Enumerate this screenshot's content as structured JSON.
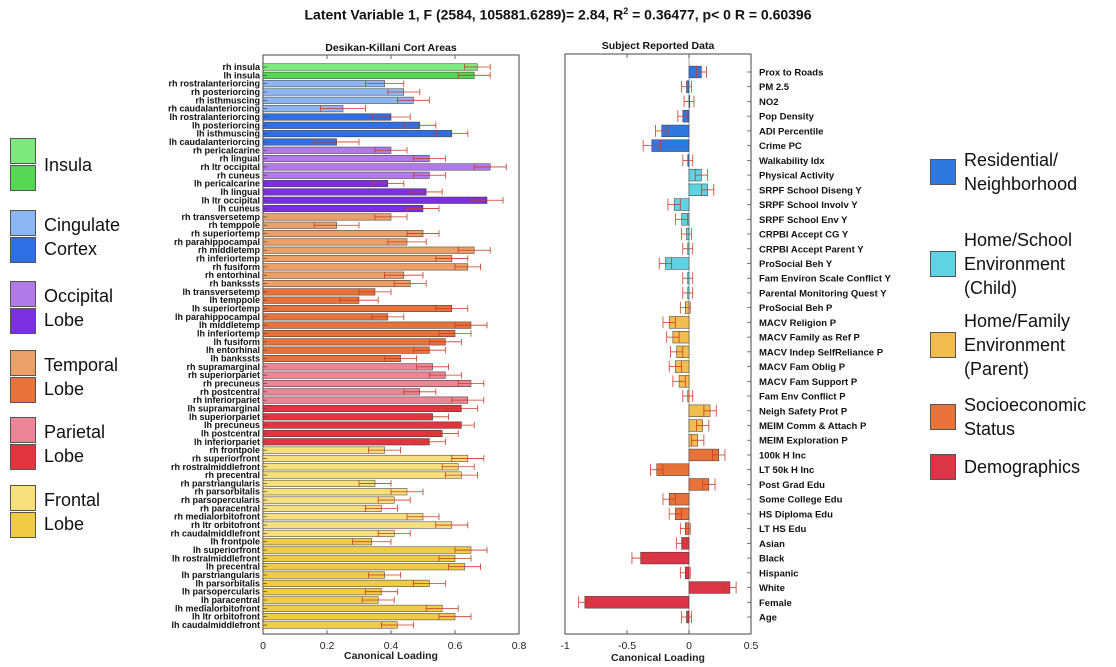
{
  "title": {
    "pre": "Latent Variable 1, F (2584, 105881.6289)= 2.84, R",
    "sup": "2",
    "post": " = 0.36477, p< 0 R = 0.60396"
  },
  "chart_data": [
    {
      "type": "bar",
      "orientation": "horizontal",
      "title": "Desikan-Killani Cort Areas",
      "xlabel": "Canonical Loading",
      "xlim": [
        0,
        0.8
      ],
      "xticks": [
        "0",
        "0.2",
        "0.4",
        "0.6",
        "0.8"
      ],
      "grid": false,
      "bars": [
        {
          "label": "rh insula",
          "value": 0.67,
          "err": 0.04,
          "color": "#7de87d"
        },
        {
          "label": "lh insula",
          "value": 0.66,
          "err": 0.05,
          "color": "#55d655"
        },
        {
          "label": "rh rostralanteriorcing",
          "value": 0.38,
          "err": 0.06,
          "color": "#8bb6f2"
        },
        {
          "label": "rh posteriorcing",
          "value": 0.44,
          "err": 0.05,
          "color": "#8bb6f2"
        },
        {
          "label": "rh isthmuscing",
          "value": 0.47,
          "err": 0.05,
          "color": "#8bb6f2"
        },
        {
          "label": "rh caudalanteriorcing",
          "value": 0.25,
          "err": 0.07,
          "color": "#8bb6f2"
        },
        {
          "label": "lh rostralanteriorcing",
          "value": 0.4,
          "err": 0.06,
          "color": "#2f6fe6"
        },
        {
          "label": "lh posteriorcing",
          "value": 0.49,
          "err": 0.05,
          "color": "#2f6fe6"
        },
        {
          "label": "lh isthmuscing",
          "value": 0.59,
          "err": 0.05,
          "color": "#2f6fe6"
        },
        {
          "label": "lh caudalanteriorcing",
          "value": 0.23,
          "err": 0.07,
          "color": "#2f6fe6"
        },
        {
          "label": "rh pericalcarine",
          "value": 0.4,
          "err": 0.05,
          "color": "#b07be8"
        },
        {
          "label": "rh lingual",
          "value": 0.52,
          "err": 0.05,
          "color": "#b07be8"
        },
        {
          "label": "rh ltr occipital",
          "value": 0.71,
          "err": 0.05,
          "color": "#b07be8"
        },
        {
          "label": "rh cuneus",
          "value": 0.52,
          "err": 0.05,
          "color": "#b07be8"
        },
        {
          "label": "lh pericalcarine",
          "value": 0.39,
          "err": 0.05,
          "color": "#7a30e0"
        },
        {
          "label": "lh lingual",
          "value": 0.51,
          "err": 0.05,
          "color": "#7a30e0"
        },
        {
          "label": "lh ltr occipital",
          "value": 0.7,
          "err": 0.05,
          "color": "#7a30e0"
        },
        {
          "label": "lh cuneus",
          "value": 0.5,
          "err": 0.05,
          "color": "#7a30e0"
        },
        {
          "label": "rh transversetemp",
          "value": 0.4,
          "err": 0.05,
          "color": "#eba069"
        },
        {
          "label": "rh temppole",
          "value": 0.23,
          "err": 0.07,
          "color": "#eba069"
        },
        {
          "label": "rh superiortemp",
          "value": 0.5,
          "err": 0.05,
          "color": "#eba069"
        },
        {
          "label": "rh parahippocampal",
          "value": 0.45,
          "err": 0.06,
          "color": "#eba069"
        },
        {
          "label": "rh middletemp",
          "value": 0.66,
          "err": 0.05,
          "color": "#eba069"
        },
        {
          "label": "rh inferiortemp",
          "value": 0.59,
          "err": 0.05,
          "color": "#eba069"
        },
        {
          "label": "rh fusiform",
          "value": 0.64,
          "err": 0.04,
          "color": "#eba069"
        },
        {
          "label": "rh entorhinal",
          "value": 0.44,
          "err": 0.06,
          "color": "#eba069"
        },
        {
          "label": "rh bankssts",
          "value": 0.46,
          "err": 0.05,
          "color": "#eba069"
        },
        {
          "label": "lh transversetemp",
          "value": 0.35,
          "err": 0.05,
          "color": "#e8733a"
        },
        {
          "label": "lh temppole",
          "value": 0.3,
          "err": 0.06,
          "color": "#e8733a"
        },
        {
          "label": "lh superiortemp",
          "value": 0.59,
          "err": 0.05,
          "color": "#e8733a"
        },
        {
          "label": "lh parahippocampal",
          "value": 0.39,
          "err": 0.05,
          "color": "#e8733a"
        },
        {
          "label": "lh middletemp",
          "value": 0.65,
          "err": 0.05,
          "color": "#e8733a"
        },
        {
          "label": "lh inferiortemp",
          "value": 0.6,
          "err": 0.05,
          "color": "#e8733a"
        },
        {
          "label": "lh fusiform",
          "value": 0.57,
          "err": 0.05,
          "color": "#e8733a"
        },
        {
          "label": "lh entorhinal",
          "value": 0.52,
          "err": 0.05,
          "color": "#e8733a"
        },
        {
          "label": "lh bankssts",
          "value": 0.43,
          "err": 0.05,
          "color": "#e8733a"
        },
        {
          "label": "rh supramarginal",
          "value": 0.53,
          "err": 0.05,
          "color": "#ec8597"
        },
        {
          "label": "rh superiorpariet",
          "value": 0.57,
          "err": 0.05,
          "color": "#ec8597"
        },
        {
          "label": "rh precuneus",
          "value": 0.65,
          "err": 0.04,
          "color": "#ec8597"
        },
        {
          "label": "rh postcentral",
          "value": 0.49,
          "err": 0.05,
          "color": "#ec8597"
        },
        {
          "label": "rh inferiorpariet",
          "value": 0.64,
          "err": 0.05,
          "color": "#ec8597"
        },
        {
          "label": "lh supramarginal",
          "value": 0.62,
          "err": 0.05,
          "color": "#e23540"
        },
        {
          "label": "lh superiorpariet",
          "value": 0.53,
          "err": 0.05,
          "color": "#e23540"
        },
        {
          "label": "lh precuneus",
          "value": 0.62,
          "err": 0.04,
          "color": "#e23540"
        },
        {
          "label": "lh postcentral",
          "value": 0.56,
          "err": 0.05,
          "color": "#e23540"
        },
        {
          "label": "lh inferiorpariet",
          "value": 0.52,
          "err": 0.05,
          "color": "#e23540"
        },
        {
          "label": "rh frontpole",
          "value": 0.38,
          "err": 0.05,
          "color": "#f7e07b"
        },
        {
          "label": "rh superiorfront",
          "value": 0.64,
          "err": 0.05,
          "color": "#f7e07b"
        },
        {
          "label": "rh rostralmiddlefront",
          "value": 0.61,
          "err": 0.05,
          "color": "#f7e07b"
        },
        {
          "label": "rh precentral",
          "value": 0.62,
          "err": 0.05,
          "color": "#f7e07b"
        },
        {
          "label": "rh parstriangularis",
          "value": 0.35,
          "err": 0.05,
          "color": "#f7e07b"
        },
        {
          "label": "rh parsorbitalis",
          "value": 0.45,
          "err": 0.05,
          "color": "#f7e07b"
        },
        {
          "label": "rh parsopercularis",
          "value": 0.41,
          "err": 0.05,
          "color": "#f7e07b"
        },
        {
          "label": "rh paracentral",
          "value": 0.37,
          "err": 0.05,
          "color": "#f7e07b"
        },
        {
          "label": "rh medialorbitofront",
          "value": 0.5,
          "err": 0.05,
          "color": "#f7e07b"
        },
        {
          "label": "rh ltr orbitofront",
          "value": 0.59,
          "err": 0.05,
          "color": "#f7e07b"
        },
        {
          "label": "rh caudalmiddlefront",
          "value": 0.41,
          "err": 0.05,
          "color": "#f7e07b"
        },
        {
          "label": "lh frontpole",
          "value": 0.34,
          "err": 0.06,
          "color": "#f0cc45"
        },
        {
          "label": "lh superiorfront",
          "value": 0.65,
          "err": 0.05,
          "color": "#f0cc45"
        },
        {
          "label": "lh rostralmiddlefront",
          "value": 0.6,
          "err": 0.05,
          "color": "#f0cc45"
        },
        {
          "label": "lh precentral",
          "value": 0.63,
          "err": 0.05,
          "color": "#f0cc45"
        },
        {
          "label": "lh parstriangularis",
          "value": 0.38,
          "err": 0.05,
          "color": "#f0cc45"
        },
        {
          "label": "lh parsorbitalis",
          "value": 0.52,
          "err": 0.05,
          "color": "#f0cc45"
        },
        {
          "label": "lh parsopercularis",
          "value": 0.37,
          "err": 0.05,
          "color": "#f0cc45"
        },
        {
          "label": "lh paracentral",
          "value": 0.36,
          "err": 0.05,
          "color": "#f0cc45"
        },
        {
          "label": "lh medialorbitofront",
          "value": 0.56,
          "err": 0.05,
          "color": "#f0cc45"
        },
        {
          "label": "lh ltr orbitofront",
          "value": 0.6,
          "err": 0.05,
          "color": "#f0cc45"
        },
        {
          "label": "lh caudalmiddlefront",
          "value": 0.42,
          "err": 0.05,
          "color": "#f0cc45"
        }
      ]
    },
    {
      "type": "bar",
      "orientation": "horizontal",
      "title": "Subject Reported Data",
      "xlabel": "Canonical Loading",
      "xlim": [
        -1,
        0.5
      ],
      "xticks": [
        "-1",
        "-0.5",
        "0",
        "0.5"
      ],
      "grid": false,
      "bars": [
        {
          "label": "Prox to Roads",
          "value": 0.1,
          "err": 0.04,
          "color": "#2f78e0"
        },
        {
          "label": "PM 2.5",
          "value": -0.02,
          "err": 0.04,
          "color": "#2f78e0"
        },
        {
          "label": "NO2",
          "value": 0.0,
          "err": 0.04,
          "color": "#2f78e0"
        },
        {
          "label": "Pop Density",
          "value": -0.05,
          "err": 0.04,
          "color": "#2f78e0"
        },
        {
          "label": "ADI Percentile",
          "value": -0.22,
          "err": 0.05,
          "color": "#2f78e0"
        },
        {
          "label": "Crime PC",
          "value": -0.3,
          "err": 0.07,
          "color": "#2f78e0"
        },
        {
          "label": "Walkability Idx",
          "value": -0.01,
          "err": 0.04,
          "color": "#2f78e0"
        },
        {
          "label": "Physical Activity",
          "value": 0.1,
          "err": 0.05,
          "color": "#5fd3e3"
        },
        {
          "label": "SRPF School Diseng Y",
          "value": 0.15,
          "err": 0.05,
          "color": "#5fd3e3"
        },
        {
          "label": "SRPF School Involv Y",
          "value": -0.12,
          "err": 0.05,
          "color": "#5fd3e3"
        },
        {
          "label": "SRPF School Env Y",
          "value": -0.06,
          "err": 0.05,
          "color": "#5fd3e3"
        },
        {
          "label": "CRPBI Accept CG Y",
          "value": -0.02,
          "err": 0.04,
          "color": "#5fd3e3"
        },
        {
          "label": "CRPBI Accept Parent Y",
          "value": -0.01,
          "err": 0.04,
          "color": "#5fd3e3"
        },
        {
          "label": "ProSocial Beh Y",
          "value": -0.19,
          "err": 0.05,
          "color": "#5fd3e3"
        },
        {
          "label": "Fam Environ Scale Conflict Y",
          "value": -0.01,
          "err": 0.04,
          "color": "#5fd3e3"
        },
        {
          "label": "Parental Monitoring Quest Y",
          "value": -0.01,
          "err": 0.04,
          "color": "#5fd3e3"
        },
        {
          "label": "ProSocial Beh P",
          "value": -0.03,
          "err": 0.04,
          "color": "#f2bd4f"
        },
        {
          "label": "MACV Religion P",
          "value": -0.16,
          "err": 0.05,
          "color": "#f2bd4f"
        },
        {
          "label": "MACV Family as Ref P",
          "value": -0.13,
          "err": 0.05,
          "color": "#f2bd4f"
        },
        {
          "label": "MACV Indep SelfReliance P",
          "value": -0.1,
          "err": 0.05,
          "color": "#f2bd4f"
        },
        {
          "label": "MACV Fam Oblig P",
          "value": -0.11,
          "err": 0.05,
          "color": "#f2bd4f"
        },
        {
          "label": "MACV Fam Support P",
          "value": -0.08,
          "err": 0.05,
          "color": "#f2bd4f"
        },
        {
          "label": "Fam Env Conflict P",
          "value": -0.01,
          "err": 0.04,
          "color": "#f2bd4f"
        },
        {
          "label": "Neigh Safety Prot P",
          "value": 0.17,
          "err": 0.05,
          "color": "#f2bd4f"
        },
        {
          "label": "MEIM Comm & Attach P",
          "value": 0.11,
          "err": 0.05,
          "color": "#f2bd4f"
        },
        {
          "label": "MEIM Exploration P",
          "value": 0.07,
          "err": 0.05,
          "color": "#f2bd4f"
        },
        {
          "label": "100k H Inc",
          "value": 0.24,
          "err": 0.05,
          "color": "#e8733a"
        },
        {
          "label": "LT 50k H Inc",
          "value": -0.26,
          "err": 0.05,
          "color": "#e8733a"
        },
        {
          "label": "Post Grad Edu",
          "value": 0.16,
          "err": 0.05,
          "color": "#e8733a"
        },
        {
          "label": "Some College Edu",
          "value": -0.16,
          "err": 0.05,
          "color": "#e8733a"
        },
        {
          "label": "HS Diploma Edu",
          "value": -0.11,
          "err": 0.05,
          "color": "#e8733a"
        },
        {
          "label": "LT HS Edu",
          "value": -0.03,
          "err": 0.04,
          "color": "#e8733a"
        },
        {
          "label": "Asian",
          "value": -0.06,
          "err": 0.04,
          "color": "#dc3548"
        },
        {
          "label": "Black",
          "value": -0.39,
          "err": 0.07,
          "color": "#dc3548"
        },
        {
          "label": "Hispanic",
          "value": -0.03,
          "err": 0.04,
          "color": "#dc3548"
        },
        {
          "label": "White",
          "value": 0.33,
          "err": 0.05,
          "color": "#dc3548"
        },
        {
          "label": "Female",
          "value": -0.84,
          "err": 0.05,
          "color": "#dc3548"
        },
        {
          "label": "Age",
          "value": -0.02,
          "err": 0.04,
          "color": "#dc3548"
        }
      ]
    }
  ],
  "left_legend": [
    {
      "lines": [
        "Insula"
      ],
      "colors": [
        "#7de87d",
        "#55d655"
      ]
    },
    {
      "lines": [
        "Cingulate",
        "Cortex"
      ],
      "colors": [
        "#8bb6f2",
        "#2f6fe6"
      ]
    },
    {
      "lines": [
        "Occipital",
        "Lobe"
      ],
      "colors": [
        "#b07be8",
        "#7a30e0"
      ]
    },
    {
      "lines": [
        "Temporal",
        "Lobe"
      ],
      "colors": [
        "#eba069",
        "#e8733a"
      ]
    },
    {
      "lines": [
        "Parietal",
        "Lobe"
      ],
      "colors": [
        "#ec8597",
        "#e23540"
      ]
    },
    {
      "lines": [
        "Frontal",
        "Lobe"
      ],
      "colors": [
        "#f7e07b",
        "#f0cc45"
      ]
    }
  ],
  "right_legend": [
    {
      "lines": [
        "Residential/",
        "Neighborhood"
      ],
      "color": "#2f78e0"
    },
    {
      "lines": [
        "Home/School",
        "Environment",
        "(Child)"
      ],
      "color": "#5fd3e3"
    },
    {
      "lines": [
        "Home/Family",
        "Environment",
        "(Parent)"
      ],
      "color": "#f2bd4f"
    },
    {
      "lines": [
        "Socioeconomic",
        "Status"
      ],
      "color": "#e8733a"
    },
    {
      "lines": [
        "Demographics"
      ],
      "color": "#dc3548"
    }
  ]
}
